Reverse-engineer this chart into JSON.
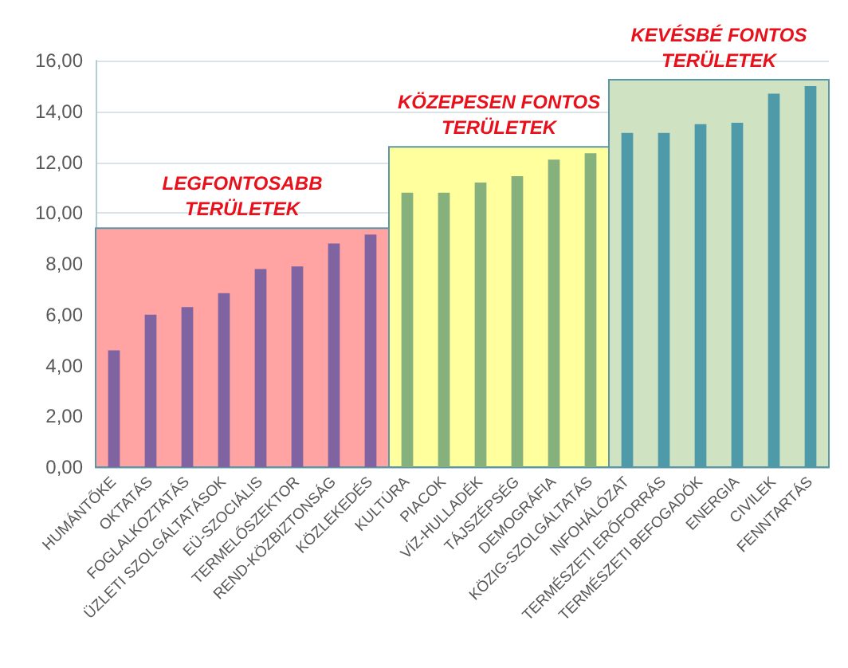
{
  "chart_data": {
    "type": "bar",
    "categories": [
      "HUMÁNTŐKE",
      "OKTATÁS",
      "FOGLALKOZTATÁS",
      "ÜZLETI SZOLGÁLTATÁSOK",
      "EÜ-SZOCIÁLIS",
      "TERMELŐSZEKTOR",
      "REND-KÖZBIZTONSÁG",
      "KÖZLEKEDÉS",
      "KULTÚRA",
      "PIACOK",
      "VÍZ-HULLADÉK",
      "TÁJSZÉPSÉG",
      "DEMOGRÁFIA",
      "KÖZIG-SZOLGÁLTATÁS",
      "INFOHÁLÓZAT",
      "TERMÉSZETI ERŐFORRÁS",
      "TERMÉSZETI BEFOGADÓK",
      "ENERGIA",
      "CIVILEK",
      "FENNTARTÁS"
    ],
    "series": [
      {
        "color": "#8064a2",
        "values": [
          4.6,
          6.0,
          6.3,
          6.85,
          7.8,
          7.9,
          8.8,
          9.15,
          null,
          null,
          null,
          null,
          null,
          null,
          null,
          null,
          null,
          null,
          null,
          null
        ]
      },
      {
        "color": "#86b07c",
        "values": [
          null,
          null,
          null,
          null,
          null,
          null,
          null,
          null,
          10.8,
          10.8,
          11.2,
          11.45,
          12.1,
          12.35,
          null,
          null,
          null,
          null,
          null,
          null
        ]
      },
      {
        "color": "#4f9aa8",
        "values": [
          null,
          null,
          null,
          null,
          null,
          null,
          null,
          null,
          null,
          null,
          null,
          null,
          null,
          null,
          13.15,
          13.15,
          13.5,
          13.55,
          14.7,
          15.0
        ]
      }
    ],
    "ylim": [
      0,
      16
    ],
    "yticks": [
      {
        "value": 0,
        "label": "0,00"
      },
      {
        "value": 2,
        "label": "2,00"
      },
      {
        "value": 4,
        "label": "4,00"
      },
      {
        "value": 6,
        "label": "6,00"
      },
      {
        "value": 8,
        "label": "8,00"
      },
      {
        "value": 10,
        "label": "10,00"
      },
      {
        "value": 12,
        "label": "12,00"
      },
      {
        "value": 14,
        "label": "14,00"
      },
      {
        "value": 16,
        "label": "16,00"
      }
    ],
    "grid": "y",
    "bands": [
      {
        "axis": "x",
        "from": "HUMÁNTŐKE",
        "to": "KÖZLEKEDÉS",
        "label": "LEGFONTOSABB\nTERÜLETEK",
        "color": "#ffa3a3"
      },
      {
        "axis": "x",
        "from": "KULTÚRA",
        "to": "KÖZIG-SZOLGÁLTATÁS",
        "label": "KÖZEPESEN FONTOS\nTERÜLETEK",
        "color": "#ffff9e"
      },
      {
        "axis": "x",
        "from": "INFOHÁLÓZAT",
        "to": "FENNTARTÁS",
        "label": "KEVÉSBÉ FONTOS\nTERÜLETEK",
        "color": "#cfe3c3"
      }
    ]
  }
}
